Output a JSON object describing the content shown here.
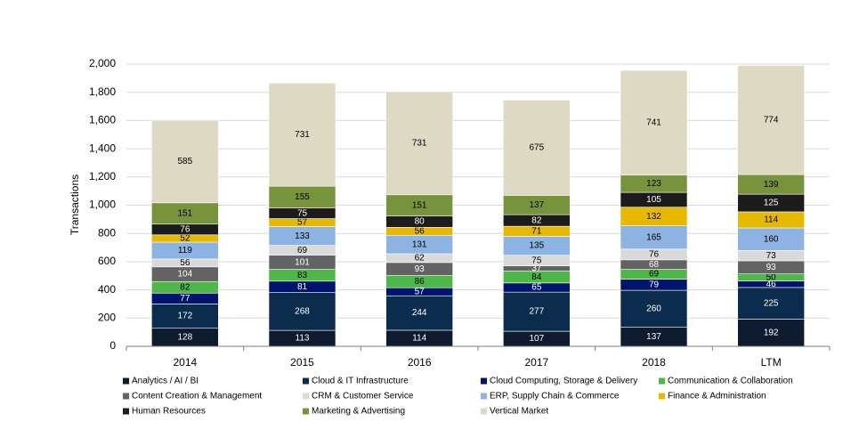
{
  "chart_data": {
    "type": "stacked_bar",
    "y_axis_label": "Transactions",
    "categories": [
      "2014",
      "2015",
      "2016",
      "2017",
      "2018",
      "LTM"
    ],
    "series": [
      {
        "name": "Analytics / AI / BI",
        "color": "#0e1b2f",
        "values": [
          128,
          113,
          114,
          107,
          137,
          192
        ]
      },
      {
        "name": "Cloud & IT Infrastructure",
        "color": "#0b2c4c",
        "values": [
          172,
          268,
          244,
          277,
          260,
          225
        ]
      },
      {
        "name": "Cloud Computing, Storage & Delivery",
        "color": "#00146e",
        "values": [
          77,
          81,
          57,
          65,
          79,
          46
        ]
      },
      {
        "name": "Communication & Collaboration",
        "color": "#4db848",
        "values": [
          82,
          83,
          86,
          84,
          69,
          50
        ]
      },
      {
        "name": "Content Creation & Management",
        "color": "#636363",
        "values": [
          104,
          101,
          93,
          37,
          68,
          93
        ]
      },
      {
        "name": "CRM & Customer Service",
        "color": "#d9d9d9",
        "values": [
          56,
          69,
          62,
          75,
          76,
          73
        ]
      },
      {
        "name": "ERP, Supply Chain & Commerce",
        "color": "#8db3e2",
        "values": [
          119,
          133,
          131,
          135,
          165,
          160
        ]
      },
      {
        "name": "Finance & Administration",
        "color": "#e6b800",
        "values": [
          52,
          57,
          56,
          71,
          132,
          114
        ]
      },
      {
        "name": "Human Resources",
        "color": "#1c1c1c",
        "values": [
          76,
          75,
          80,
          82,
          105,
          125
        ]
      },
      {
        "name": "Marketing & Advertising",
        "color": "#77933c",
        "values": [
          151,
          155,
          151,
          137,
          123,
          139
        ]
      },
      {
        "name": "Vertical Market",
        "color": "#ddd9c3",
        "values": [
          585,
          731,
          731,
          675,
          741,
          774
        ]
      }
    ],
    "ylim": [
      0,
      2000
    ],
    "yticks": [
      0,
      200,
      400,
      600,
      800,
      {
        "value": 1000,
        "label": "1,000"
      },
      {
        "value": 1200,
        "label": "1,200"
      },
      {
        "value": 1400,
        "label": "1,400"
      },
      {
        "value": 1600,
        "label": "1,600"
      },
      {
        "value": 1800,
        "label": "1,800"
      },
      {
        "value": 2000,
        "label": "2,000"
      }
    ],
    "grid": true
  }
}
